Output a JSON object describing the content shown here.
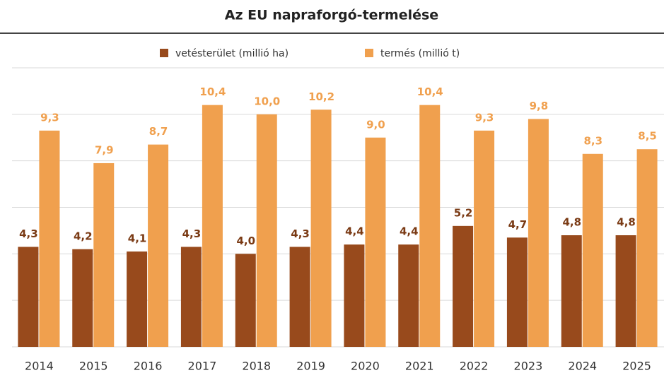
{
  "chart_data": {
    "type": "bar",
    "title": "Az EU napraforgó-termelése",
    "categories": [
      "2014",
      "2015",
      "2016",
      "2017",
      "2018",
      "2019",
      "2020",
      "2021",
      "2022",
      "2023",
      "2024",
      "2025"
    ],
    "series": [
      {
        "name": "vetésterület (millió ha)",
        "color": "#984a1c",
        "values": [
          4.3,
          4.2,
          4.1,
          4.3,
          4.0,
          4.3,
          4.4,
          4.4,
          5.2,
          4.7,
          4.8,
          4.8
        ],
        "value_labels": [
          "4,3",
          "4,2",
          "4,1",
          "4,3",
          "4,0",
          "4,3",
          "4,4",
          "4,4",
          "5,2",
          "4,7",
          "4,8",
          "4,8"
        ]
      },
      {
        "name": "termés (millió t)",
        "color": "#f0a04e",
        "values": [
          9.3,
          7.9,
          8.7,
          10.4,
          10.0,
          10.2,
          9.0,
          10.4,
          9.3,
          9.8,
          8.3,
          8.5
        ],
        "value_labels": [
          "9,3",
          "7,9",
          "8,7",
          "10,4",
          "10,0",
          "10,2",
          "9,0",
          "10,4",
          "9,3",
          "9,8",
          "8,3",
          "8,5"
        ]
      }
    ],
    "ylim": [
      0,
      12
    ],
    "yticks": [
      0,
      2,
      4,
      6,
      8,
      10,
      12
    ],
    "grid": true,
    "legend": "top"
  }
}
